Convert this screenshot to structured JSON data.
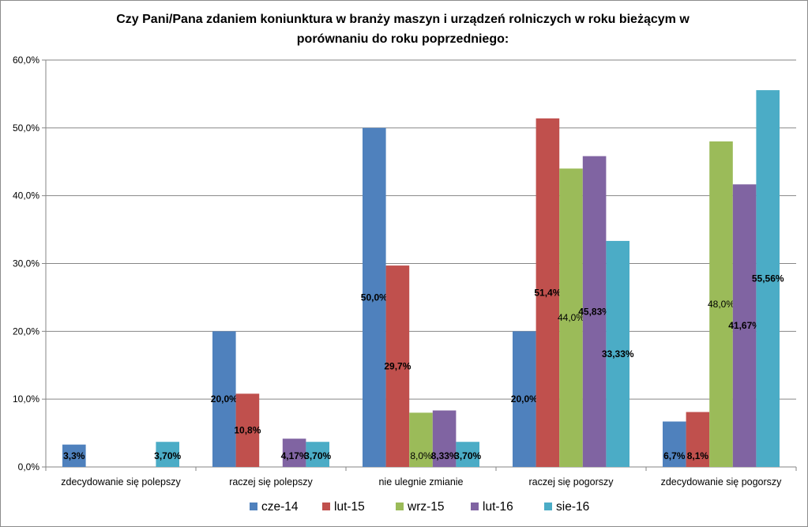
{
  "chart_data": {
    "type": "bar",
    "title_line1": "Czy Pani/Pana  zdaniem koniunktura w branży maszyn i urządzeń rolniczych w roku bieżącym w",
    "title_line2": "porównaniu do roku poprzedniego:",
    "categories": [
      "zdecydowanie się polepszy",
      "raczej się polepszy",
      "nie ulegnie zmianie",
      "raczej się pogorszy",
      "zdecydowanie się pogorszy"
    ],
    "ylim": [
      0,
      60
    ],
    "yticks": [
      0,
      10,
      20,
      30,
      40,
      50,
      60
    ],
    "ytick_labels": [
      "0,0%",
      "10,0%",
      "20,0%",
      "30,0%",
      "40,0%",
      "50,0%",
      "60,0%"
    ],
    "xlabel": "",
    "ylabel": "",
    "grid": true,
    "legend_position": "bottom",
    "series": [
      {
        "name": "cze-14",
        "color": "#4f81bd",
        "values": [
          3.3,
          20.0,
          50.0,
          20.0,
          6.7
        ],
        "labels": [
          "3,3%",
          "20,0%",
          "50,0%",
          "20,0%",
          "6,7%"
        ],
        "label_bold": true
      },
      {
        "name": "lut-15",
        "color": "#c0504d",
        "values": [
          null,
          10.8,
          29.7,
          51.4,
          8.1
        ],
        "labels": [
          null,
          "10,8%",
          "29,7%",
          "51,4%",
          "8,1%"
        ],
        "label_bold": true
      },
      {
        "name": "wrz-15",
        "color": "#9bbb59",
        "values": [
          null,
          null,
          8.0,
          44.0,
          48.0
        ],
        "labels": [
          null,
          null,
          "8,0%",
          "44,0%",
          "48,0%"
        ],
        "label_bold": false
      },
      {
        "name": "lut-16",
        "color": "#8064a2",
        "values": [
          null,
          4.17,
          8.33,
          45.83,
          41.67
        ],
        "labels": [
          null,
          "4,17%",
          "8,33%",
          "45,83%",
          "41,67%"
        ],
        "label_bold": true
      },
      {
        "name": "sie-16",
        "color": "#4bacc6",
        "values": [
          3.7,
          3.7,
          3.7,
          33.33,
          55.56
        ],
        "labels": [
          "3,70%",
          "3,70%",
          "3,70%",
          "33,33%",
          "55,56%"
        ],
        "label_bold": true
      }
    ]
  }
}
